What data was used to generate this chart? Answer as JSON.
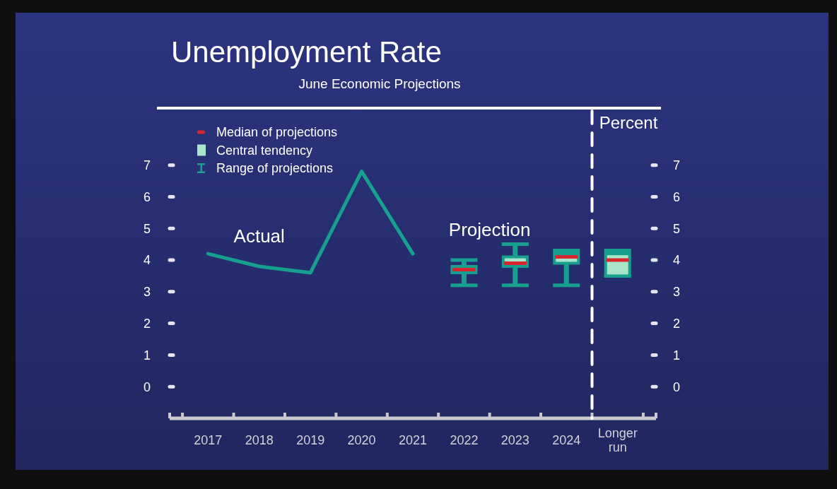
{
  "chart_data": {
    "type": "line",
    "title": "Unemployment Rate",
    "subtitle": "June Economic Projections",
    "y2label": "Percent",
    "xlim": [
      2016.25,
      2025.75
    ],
    "xticks": [
      {
        "value": 2016.25,
        "label": null
      },
      {
        "value": 2016.5,
        "label": null
      },
      {
        "value": 2017,
        "label": "2017"
      },
      {
        "value": 2017.5,
        "label": null
      },
      {
        "value": 2018,
        "label": "2018"
      },
      {
        "value": 2018.5,
        "label": null
      },
      {
        "value": 2019,
        "label": "2019"
      },
      {
        "value": 2019.5,
        "label": null
      },
      {
        "value": 2020,
        "label": "2020"
      },
      {
        "value": 2020.5,
        "label": null
      },
      {
        "value": 2021,
        "label": "2021"
      },
      {
        "value": 2021.5,
        "label": null
      },
      {
        "value": 2022,
        "label": "2022"
      },
      {
        "value": 2022.5,
        "label": null
      },
      {
        "value": 2023,
        "label": "2023"
      },
      {
        "value": 2023.5,
        "label": null
      },
      {
        "value": 2024,
        "label": "2024"
      },
      {
        "value": 2024.5,
        "label": null
      },
      {
        "value": 2025,
        "label": "Longer run"
      },
      {
        "value": 2025.5,
        "label": null
      },
      {
        "value": 2025.75,
        "label": null
      }
    ],
    "ylim": [
      -1,
      8.8
    ],
    "yticks": [
      0,
      1,
      2,
      3,
      4,
      5,
      6,
      7
    ],
    "y2lim": [
      -1,
      8.8
    ],
    "y2ticks": [
      0,
      1,
      2,
      3,
      4,
      5,
      6,
      7
    ],
    "series": [
      {
        "name": "Actual",
        "color": "#17a08e",
        "x": [
          2017,
          2018,
          2019,
          2020,
          2021
        ],
        "values": [
          4.2,
          3.8,
          3.6,
          6.8,
          4.2
        ]
      },
      {
        "name": "Projection",
        "type": "box",
        "color": "#17a08e",
        "x": [
          2022,
          2023,
          2024,
          2025
        ],
        "boxes": [
          {
            "low": 3.2,
            "q1": 3.6,
            "median": 3.7,
            "q3": 3.8,
            "high": 4.0
          },
          {
            "low": 3.2,
            "q1": 3.8,
            "median": 3.9,
            "q3": 4.1,
            "high": 4.5
          },
          {
            "low": 3.2,
            "q1": 3.9,
            "median": 4.1,
            "q3": 4.2,
            "high": 4.3
          },
          {
            "low": 3.5,
            "q1": 3.5,
            "median": 4.0,
            "q3": 4.2,
            "high": 4.3
          }
        ]
      }
    ],
    "ref_lines": [
      {
        "axis": "x",
        "value": 2024.5,
        "color": "#ffffff",
        "line_style": "dashed"
      }
    ],
    "annotations": [
      "Median of projections",
      "Central tendency",
      "Range of projections"
    ]
  }
}
